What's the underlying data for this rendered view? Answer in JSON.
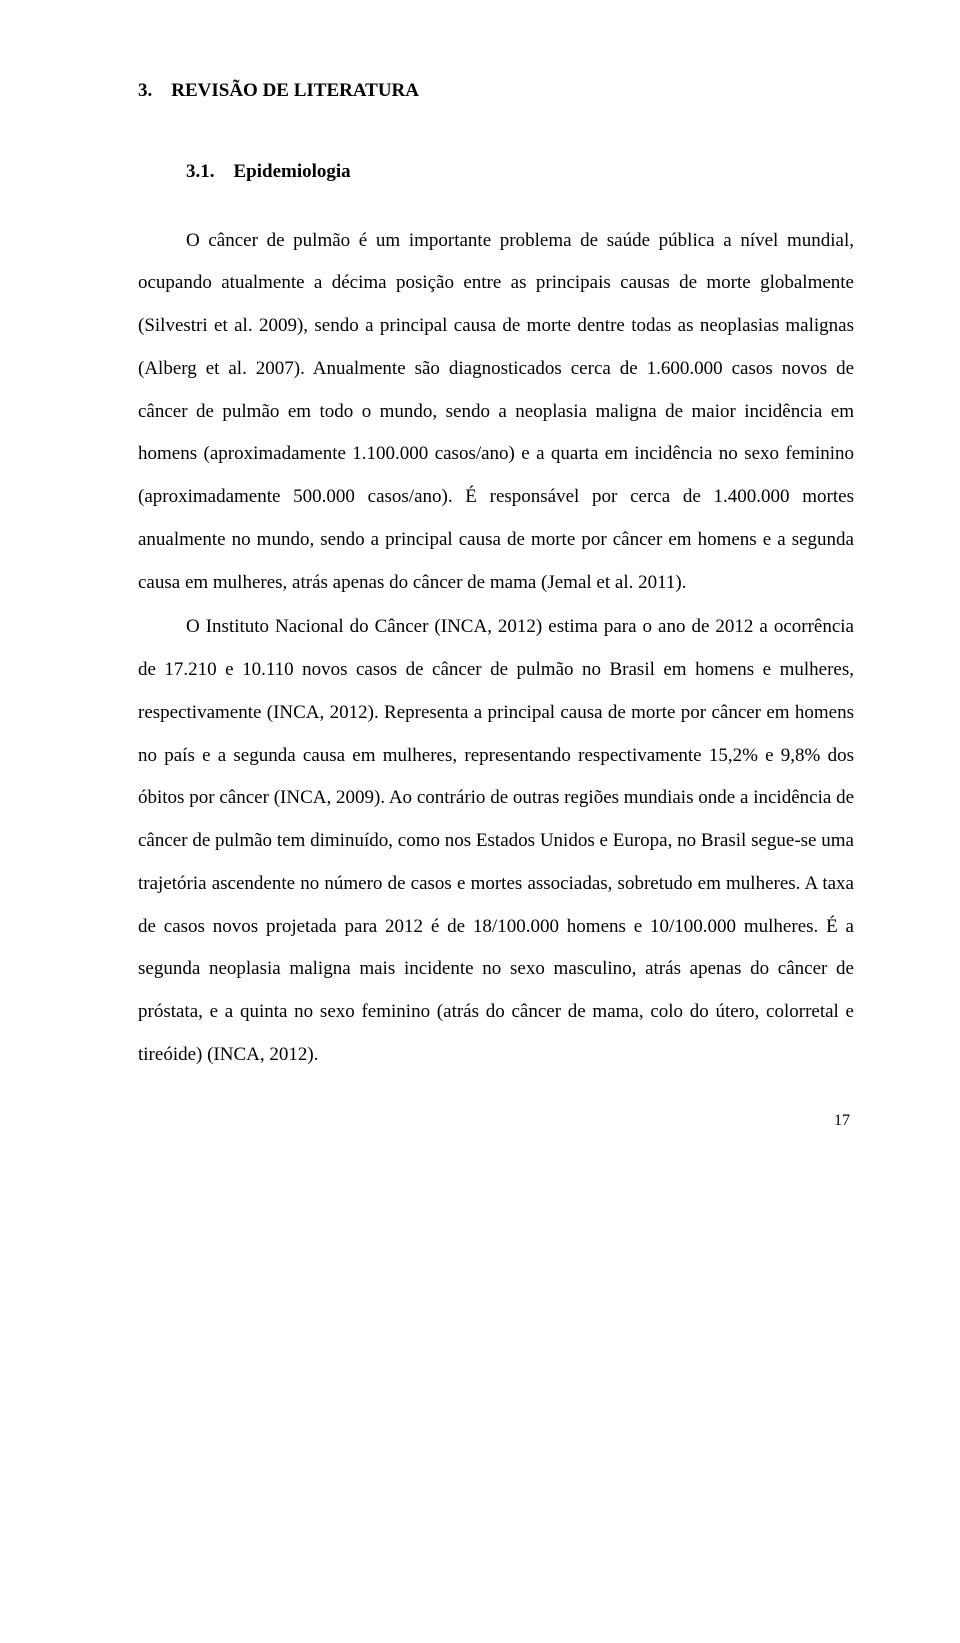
{
  "doc": {
    "heading_num": "3.",
    "heading_text": "REVISÃO DE LITERATURA",
    "subheading_num": "3.1.",
    "subheading_text": "Epidemiologia",
    "para1": "O câncer de pulmão é um importante problema de saúde pública a nível mundial, ocupando atualmente a décima posição entre as principais causas de morte globalmente (Silvestri et al. 2009), sendo a principal causa de morte dentre todas as neoplasias malignas (Alberg et al. 2007). Anualmente são diagnosticados cerca de 1.600.000 casos novos de câncer de pulmão em todo o mundo, sendo a neoplasia maligna de maior incidência em homens (aproximadamente 1.100.000 casos/ano) e a quarta em incidência no sexo feminino (aproximadamente 500.000 casos/ano). É responsável por cerca de 1.400.000 mortes anualmente no mundo, sendo a principal causa de morte por câncer em homens e a segunda causa em mulheres, atrás apenas do câncer de mama (Jemal et al. 2011).",
    "para2": "O Instituto Nacional do Câncer (INCA, 2012) estima para o ano de 2012 a ocorrência de 17.210 e 10.110 novos casos de câncer de pulmão no Brasil em homens e mulheres, respectivamente (INCA, 2012). Representa a principal causa de morte por câncer em homens no país e a segunda causa em mulheres, representando respectivamente 15,2% e 9,8% dos óbitos por câncer (INCA, 2009). Ao contrário de outras regiões mundiais onde a incidência de câncer de pulmão tem diminuído, como nos Estados Unidos e Europa, no Brasil segue-se uma trajetória ascendente no número de casos e mortes associadas, sobretudo em mulheres. A taxa de casos novos projetada para 2012 é de 18/100.000 homens e 10/100.000 mulheres. É a segunda neoplasia maligna mais incidente no sexo masculino, atrás apenas do câncer de próstata, e a quinta no sexo feminino (atrás do câncer de mama, colo do útero, colorretal e tireóide) (INCA, 2012).",
    "page_number": "17"
  }
}
